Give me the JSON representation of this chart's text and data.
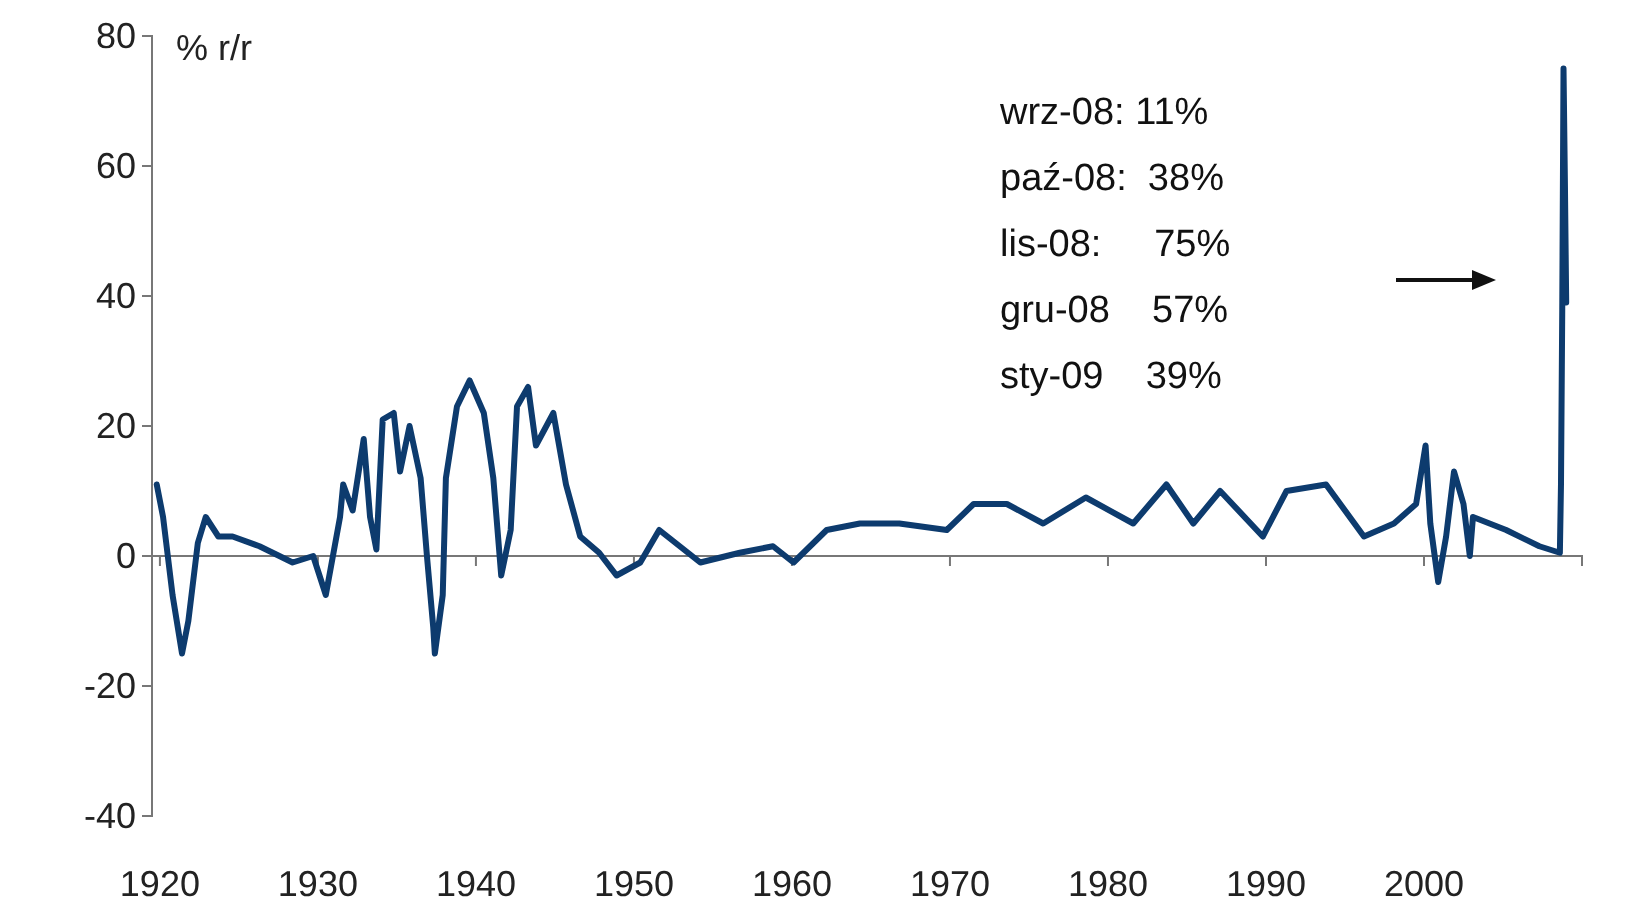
{
  "chart_data": {
    "type": "line",
    "ylabel": "% r/r",
    "annotations": [
      "wrz-08: 11%",
      "paź-08:  38%",
      "lis-08:     75%",
      "gru-08    57%",
      "sty-09    39%"
    ],
    "xlim": [
      1919.5,
      2010
    ],
    "xticks": [
      1920,
      1930,
      1940,
      1950,
      1960,
      1970,
      1980,
      1990,
      2000
    ],
    "ylim": [
      -40,
      80
    ],
    "yticks": [
      -40,
      -20,
      0,
      20,
      40,
      60,
      80
    ],
    "grid": false,
    "marker": "none",
    "line_style": "solid",
    "series": [
      {
        "color": "#0d3b6e",
        "x": [
          1919.8,
          1920.2,
          1920.8,
          1921.4,
          1921.8,
          1922.4,
          1922.9,
          1923.7,
          1924.6,
          1926.3,
          1928.4,
          1929.7,
          1930.5,
          1931.4,
          1931.6,
          1932.2,
          1932.9,
          1933.3,
          1933.7,
          1934.1,
          1934.8,
          1935.2,
          1935.8,
          1936.5,
          1936.9,
          1937.3,
          1937.4,
          1937.9,
          1938.1,
          1938.8,
          1939.6,
          1940.5,
          1941.1,
          1941.6,
          1942.2,
          1942.6,
          1943.3,
          1943.8,
          1944.9,
          1945.7,
          1946.6,
          1947.8,
          1948.9,
          1950.4,
          1951.6,
          1954.2,
          1956.7,
          1958.8,
          1960.1,
          1962.2,
          1964.3,
          1966.8,
          1969.8,
          1971.5,
          1973.6,
          1975.9,
          1978.6,
          1981.6,
          1983.7,
          1985.4,
          1987.1,
          1989.8,
          1991.3,
          1993.8,
          1996.2,
          1998.1,
          1999.5,
          2000.1,
          2000.4,
          2000.9,
          2001.4,
          2001.9,
          2002.5,
          2002.9,
          2003.1,
          2005.2,
          2007.3,
          2008.6,
          2008.67,
          2008.75,
          2008.83,
          2008.92,
          2009.0
        ],
        "values": [
          11,
          6,
          -6,
          -15,
          -10,
          2,
          6,
          3,
          3,
          1.5,
          -1,
          0,
          -6,
          6,
          11,
          7,
          18,
          6,
          1,
          21,
          22,
          13,
          20,
          12,
          0,
          -11,
          -15,
          -6,
          12,
          23,
          27,
          22,
          12,
          -3,
          4,
          23,
          26,
          17,
          22,
          11,
          3,
          0.5,
          -3,
          -1,
          4,
          -1,
          0.5,
          1.5,
          -1,
          4,
          5,
          5,
          4,
          8,
          8,
          5,
          9,
          5,
          11,
          5,
          10,
          3,
          10,
          11,
          3,
          5,
          8,
          17,
          5,
          -4,
          3,
          13,
          8,
          0,
          6,
          4,
          1.5,
          0.5,
          11,
          38,
          75,
          57,
          39
        ]
      }
    ]
  }
}
